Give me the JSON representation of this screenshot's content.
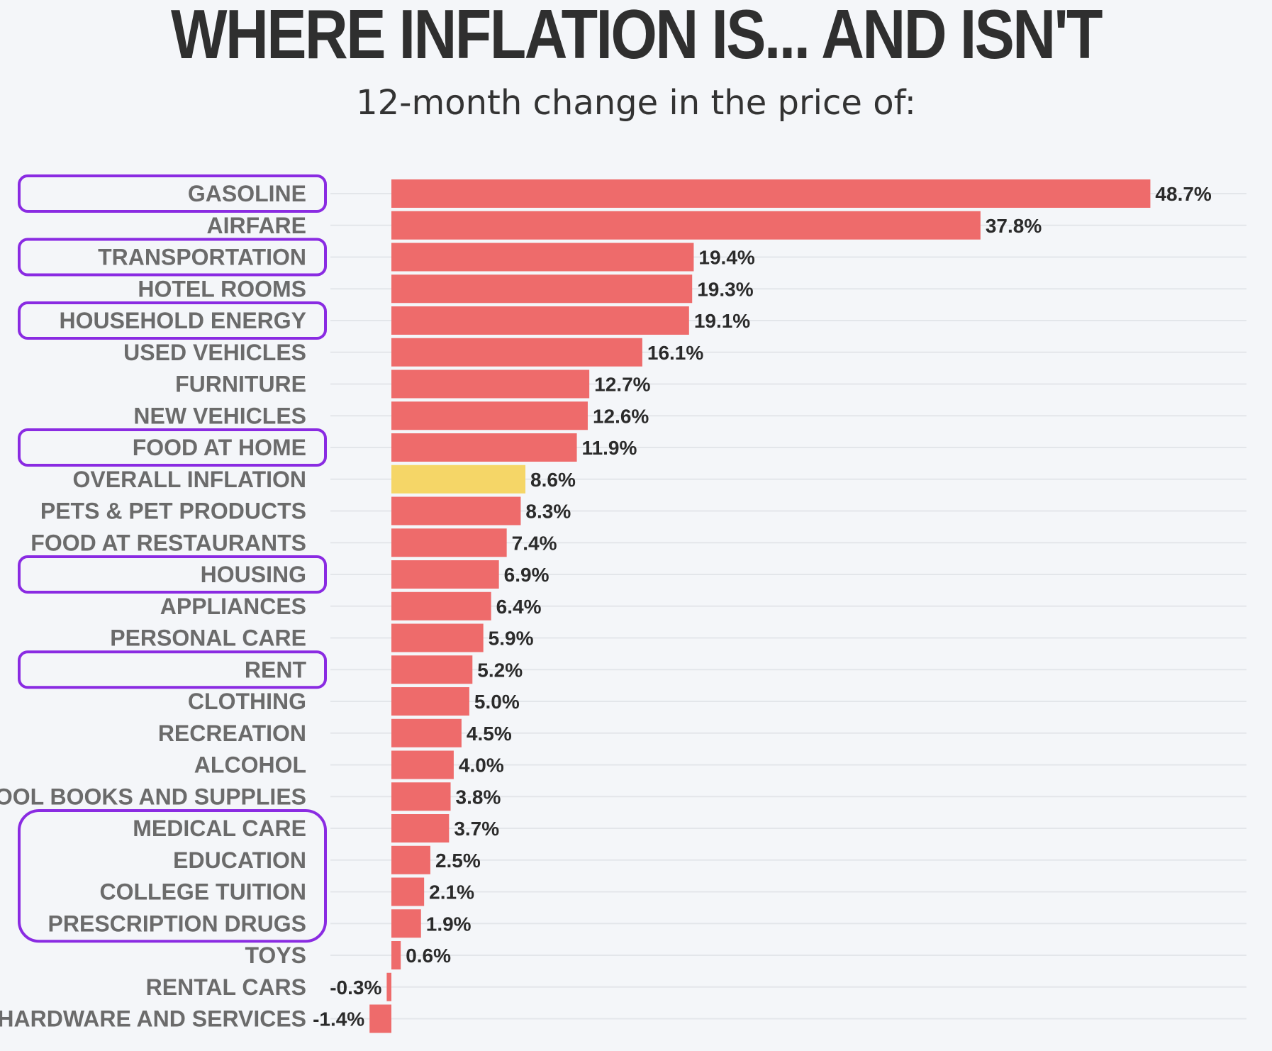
{
  "header": {
    "title": "WHERE INFLATION IS... AND ISN'T",
    "subtitle": "12-month change in the price of:"
  },
  "colors": {
    "bar": "#ee6b6b",
    "highlight_bar": "#f5d667",
    "grid": "#e3e6ea",
    "box_outline": "#8a2be2",
    "background": "#f4f6f9"
  },
  "chart_data": {
    "type": "bar",
    "orientation": "horizontal",
    "title": "WHERE INFLATION IS... AND ISN'T",
    "subtitle": "12-month change in the price of:",
    "xlabel": "",
    "ylabel": "",
    "unit": "%",
    "grid": true,
    "categories": [
      "GASOLINE",
      "AIRFARE",
      "TRANSPORTATION",
      "HOTEL ROOMS",
      "HOUSEHOLD ENERGY",
      "USED VEHICLES",
      "FURNITURE",
      "NEW VEHICLES",
      "FOOD AT HOME",
      "OVERALL INFLATION",
      "PETS & PET PRODUCTS",
      "FOOD AT RESTAURANTS",
      "HOUSING",
      "APPLIANCES",
      "PERSONAL CARE",
      "RENT",
      "CLOTHING",
      "RECREATION",
      "ALCOHOL",
      "SCHOOL BOOKS AND SUPPLIES",
      "MEDICAL CARE",
      "EDUCATION",
      "COLLEGE TUITION",
      "PRESCRIPTION DRUGS",
      "TOYS",
      "RENTAL CARS",
      "IT HARDWARE AND SERVICES"
    ],
    "values": [
      48.7,
      37.8,
      19.4,
      19.3,
      19.1,
      16.1,
      12.7,
      12.6,
      11.9,
      8.6,
      8.3,
      7.4,
      6.9,
      6.4,
      5.9,
      5.2,
      5.0,
      4.5,
      4.0,
      3.8,
      3.7,
      2.5,
      2.1,
      1.9,
      0.6,
      -0.3,
      -1.4
    ],
    "value_labels": [
      "48.7%",
      "37.8%",
      "19.4%",
      "19.3%",
      "19.1%",
      "16.1%",
      "12.7%",
      "12.6%",
      "11.9%",
      "8.6%",
      "8.3%",
      "7.4%",
      "6.9%",
      "6.4%",
      "5.9%",
      "5.2%",
      "5.0%",
      "4.5%",
      "4.0%",
      "3.8%",
      "3.7%",
      "2.5%",
      "2.1%",
      "1.9%",
      "0.6%",
      "-0.3%",
      "-1.4%"
    ],
    "highlighted_category": "OVERALL INFLATION",
    "outlined_groups": [
      [
        "GASOLINE"
      ],
      [
        "TRANSPORTATION"
      ],
      [
        "HOUSEHOLD ENERGY"
      ],
      [
        "FOOD AT HOME"
      ],
      [
        "HOUSING"
      ],
      [
        "RENT"
      ],
      [
        "MEDICAL CARE",
        "EDUCATION",
        "COLLEGE TUITION",
        "PRESCRIPTION DRUGS"
      ]
    ]
  }
}
